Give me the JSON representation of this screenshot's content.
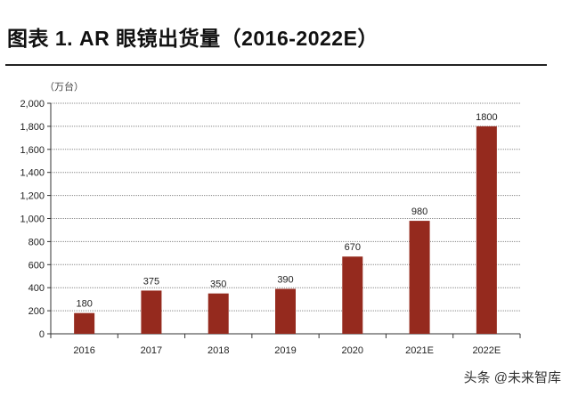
{
  "title": "图表 1. AR 眼镜出货量（2016-2022E）",
  "watermark": "头条 @未来智库",
  "chart_data": {
    "type": "bar",
    "title": "图表 1. AR 眼镜出货量（2016-2022E）",
    "unit_label": "（万台）",
    "categories": [
      "2016",
      "2017",
      "2018",
      "2019",
      "2020",
      "2021E",
      "2022E"
    ],
    "values": [
      180,
      375,
      350,
      390,
      670,
      980,
      1800
    ],
    "ylim": [
      0,
      2000
    ],
    "yticks": [
      0,
      200,
      400,
      600,
      800,
      1000,
      1200,
      1400,
      1600,
      1800,
      2000
    ],
    "ytick_labels": [
      "0",
      "200",
      "400",
      "600",
      "800",
      "1,000",
      "1,200",
      "1,400",
      "1,600",
      "1,800",
      "2,000"
    ],
    "grid": true,
    "bar_color": "#952a1e"
  }
}
